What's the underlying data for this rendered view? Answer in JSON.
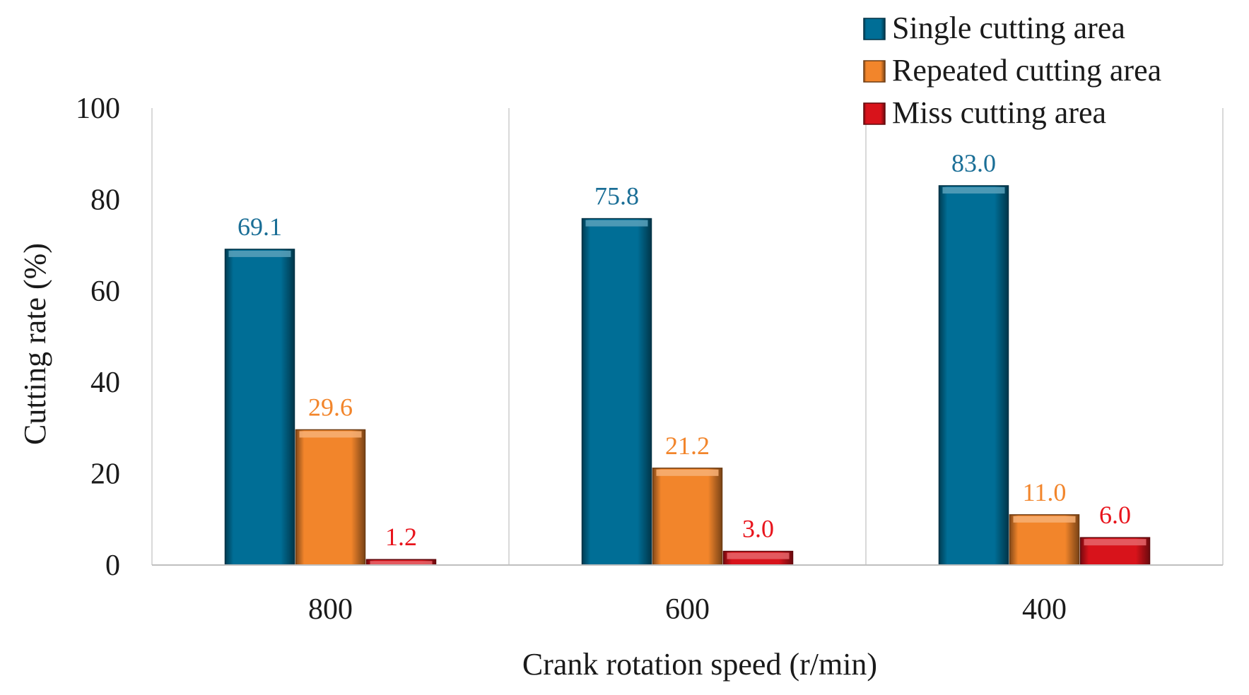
{
  "chart_data": {
    "type": "bar",
    "title": "",
    "xlabel": "Crank rotation speed (r/min)",
    "ylabel": "Cutting rate (%)",
    "categories": [
      "800",
      "600",
      "400"
    ],
    "ylim": [
      0,
      100
    ],
    "yticks": [
      0,
      20,
      40,
      60,
      80,
      100
    ],
    "grid": "vertical separators between categories",
    "legend_position": "top-right",
    "series": [
      {
        "name": "Single cutting area",
        "values": [
          69.1,
          75.8,
          83.0
        ],
        "labels": [
          "69.1",
          "75.8",
          "83.0"
        ],
        "color": "#006e96",
        "label_color": "#1a6e96"
      },
      {
        "name": "Repeated cutting area",
        "values": [
          29.6,
          21.2,
          11.0
        ],
        "labels": [
          "29.6",
          "21.2",
          "11.0"
        ],
        "color": "#f2852b",
        "label_color": "#f2852b"
      },
      {
        "name": "Miss cutting area",
        "values": [
          1.2,
          3.0,
          6.0
        ],
        "labels": [
          "1.2",
          "3.0",
          "6.0"
        ],
        "color": "#d8131b",
        "label_color": "#e8141c"
      }
    ]
  }
}
